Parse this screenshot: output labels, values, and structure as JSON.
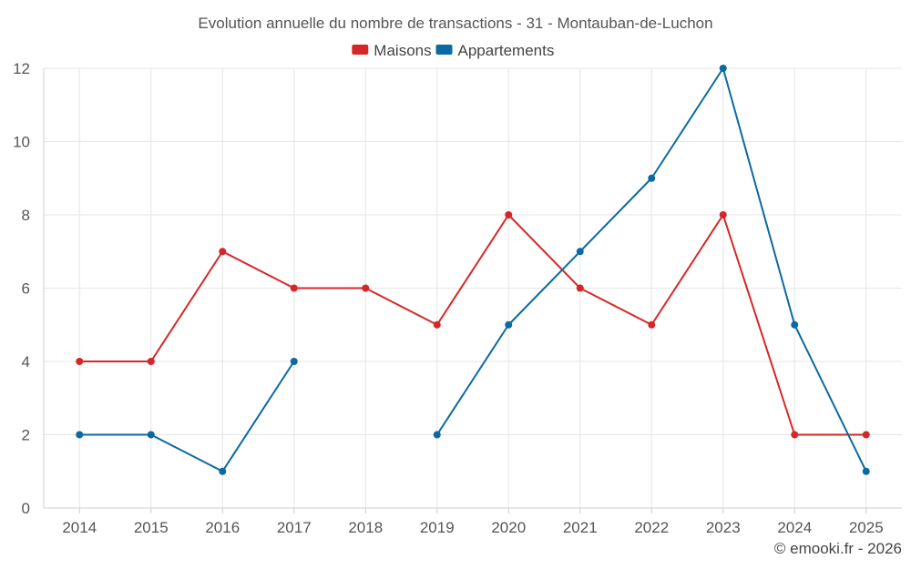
{
  "chart_data": {
    "type": "line",
    "title": "Evolution annuelle du nombre de transactions - 31 - Montauban-de-Luchon",
    "xlabel": "",
    "ylabel": "",
    "ylim": [
      0,
      12
    ],
    "yticks": [
      0,
      2,
      4,
      6,
      8,
      10,
      12
    ],
    "legend_position": "top-center",
    "grid": true,
    "categories": [
      "2014",
      "2015",
      "2016",
      "2017",
      "2018",
      "2019",
      "2020",
      "2021",
      "2022",
      "2023",
      "2024",
      "2025"
    ],
    "series": [
      {
        "name": "Maisons",
        "color": "#d62728",
        "values": [
          4,
          4,
          7,
          6,
          6,
          5,
          8,
          6,
          5,
          8,
          2,
          2
        ]
      },
      {
        "name": "Appartements",
        "color": "#0b6aa2",
        "values": [
          2,
          2,
          1,
          4,
          null,
          2,
          5,
          7,
          9,
          12,
          5,
          1
        ]
      }
    ]
  },
  "credit": "© emooki.fr - 2026"
}
